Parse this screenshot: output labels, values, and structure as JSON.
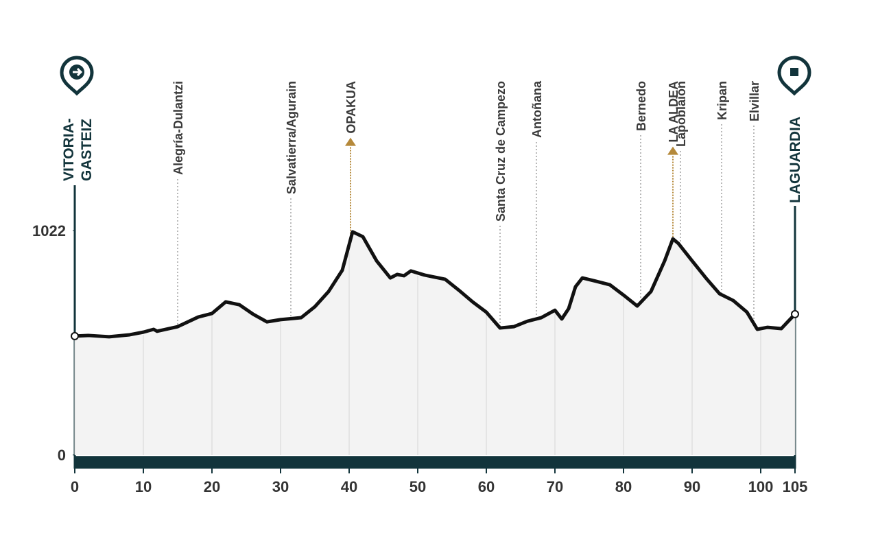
{
  "chart_data": {
    "type": "area",
    "start": [
      "VITORIA-",
      "GASTEIZ"
    ],
    "finish": "LAGUARDIA",
    "x": [
      0,
      2,
      5,
      8,
      10,
      11.5,
      12,
      15,
      18,
      20,
      22,
      24,
      26,
      28,
      30,
      32,
      33,
      35,
      37,
      39,
      40.5,
      42,
      44,
      46,
      47,
      48,
      49,
      51,
      54,
      56,
      58,
      60,
      62,
      64,
      66,
      68,
      70,
      71,
      72,
      73,
      74,
      76,
      78,
      80,
      82,
      84,
      86,
      87.2,
      88,
      90,
      92,
      94,
      96,
      98,
      99.5,
      101,
      103,
      105
    ],
    "values": [
      541,
      544,
      538,
      547,
      559,
      572,
      563,
      584,
      628,
      644,
      697,
      684,
      641,
      606,
      616,
      622,
      625,
      675,
      744,
      841,
      1016,
      994,
      884,
      806,
      822,
      816,
      838,
      819,
      800,
      750,
      697,
      650,
      578,
      584,
      609,
      625,
      659,
      619,
      666,
      766,
      806,
      791,
      775,
      728,
      678,
      744,
      884,
      984,
      963,
      884,
      806,
      734,
      703,
      650,
      572,
      581,
      575,
      641
    ],
    "color": "#111111",
    "xlim": [
      0,
      105
    ],
    "xticks": [
      0,
      10,
      20,
      30,
      40,
      50,
      60,
      70,
      80,
      90,
      100,
      105
    ],
    "ylim": [
      0,
      1022
    ],
    "yticks": [
      0,
      1022
    ],
    "grid": true,
    "places": [
      {
        "name": "Alegría-Dulantzi",
        "x": 15,
        "climb": false
      },
      {
        "name": "Salvatierra/Agurain",
        "x": 31.5,
        "climb": false
      },
      {
        "name": "OPAKUA",
        "x": 40.2,
        "climb": true
      },
      {
        "name": "Santa Cruz de Campezo",
        "x": 62,
        "climb": false
      },
      {
        "name": "Antoñana",
        "x": 67.3,
        "climb": false
      },
      {
        "name": "Bernedo",
        "x": 82.5,
        "climb": false
      },
      {
        "name": "LA ALDEA",
        "x": 87.2,
        "climb": true
      },
      {
        "name": "Lapoblaión",
        "x": 88.3,
        "climb": false
      },
      {
        "name": "Kripan",
        "x": 94.3,
        "climb": false
      },
      {
        "name": "Elvillar",
        "x": 99,
        "climb": false
      }
    ]
  }
}
